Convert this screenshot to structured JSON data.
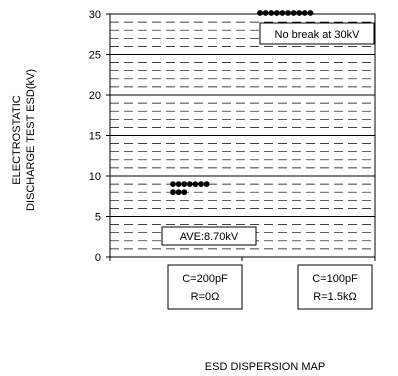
{
  "chart_data": {
    "type": "scatter",
    "title": "ESD DISPERSION MAP",
    "ylabel_lines": [
      "ELECTROSTATIC",
      "DISCHARGE TEST ESD(kV)"
    ],
    "ylim": [
      0,
      30
    ],
    "yticks": [
      0,
      5,
      10,
      15,
      20,
      25,
      30
    ],
    "grid": "dashed-horizontal",
    "categories": [
      {
        "lines": [
          "C=200pF",
          "R=0Ω"
        ]
      },
      {
        "lines": [
          "C=100pF",
          "R=1.5kΩ"
        ]
      }
    ],
    "series": [
      {
        "category_index": 0,
        "points": [
          {
            "rank": 0,
            "y": 9
          },
          {
            "rank": 1,
            "y": 9
          },
          {
            "rank": 2,
            "y": 9
          },
          {
            "rank": 3,
            "y": 9
          },
          {
            "rank": 4,
            "y": 9
          },
          {
            "rank": 5,
            "y": 9
          },
          {
            "rank": 6,
            "y": 9
          },
          {
            "rank": 0,
            "y": 8
          },
          {
            "rank": 1,
            "y": 8
          },
          {
            "rank": 2,
            "y": 8
          }
        ]
      },
      {
        "category_index": 1,
        "points": [
          {
            "rank": 0,
            "y": 30
          },
          {
            "rank": 1,
            "y": 30
          },
          {
            "rank": 2,
            "y": 30
          },
          {
            "rank": 3,
            "y": 30
          },
          {
            "rank": 4,
            "y": 30
          },
          {
            "rank": 5,
            "y": 30
          },
          {
            "rank": 6,
            "y": 30
          },
          {
            "rank": 7,
            "y": 30
          },
          {
            "rank": 8,
            "y": 30
          },
          {
            "rank": 9,
            "y": 30
          }
        ]
      }
    ],
    "annotations": [
      {
        "text": "AVE:8.70kV"
      },
      {
        "text": "No break at 30kV"
      }
    ]
  }
}
